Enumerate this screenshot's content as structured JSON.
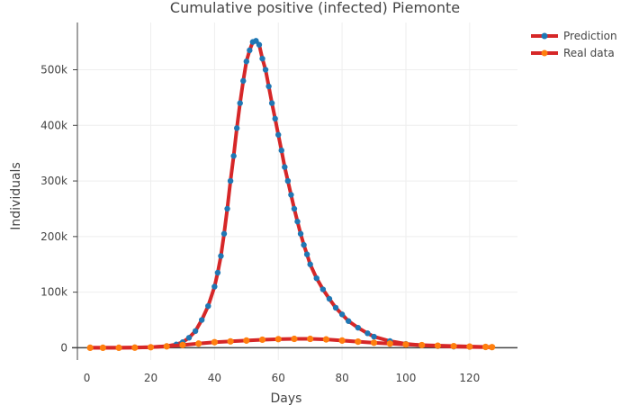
{
  "chart_data": {
    "type": "line",
    "title": "Cumulative positive (infected) Piemonte",
    "xlabel": "Days",
    "ylabel": "Individuals",
    "xlim": [
      -3,
      135
    ],
    "ylim": [
      -22000,
      585000
    ],
    "xticks": [
      0,
      20,
      40,
      60,
      80,
      100,
      120
    ],
    "xtick_labels": [
      "0",
      "20",
      "40",
      "60",
      "80",
      "100",
      "120"
    ],
    "yticks": [
      0,
      100000,
      200000,
      300000,
      400000,
      500000
    ],
    "ytick_labels": [
      "0",
      "100k",
      "200k",
      "300k",
      "400k",
      "500k"
    ],
    "grid": true,
    "legend_position": "top-right",
    "colors": {
      "line": "#d62728",
      "prediction_marker": "#1f77b4",
      "real_marker": "#ff7f0e",
      "axis": "#444444",
      "grid": "#eeeeee"
    },
    "series": [
      {
        "name": "Prediction",
        "x": [
          1,
          5,
          10,
          15,
          20,
          25,
          28,
          30,
          32,
          34,
          36,
          38,
          40,
          41,
          42,
          43,
          44,
          45,
          46,
          47,
          48,
          49,
          50,
          51,
          52,
          53,
          54,
          55,
          56,
          57,
          58,
          59,
          60,
          61,
          62,
          63,
          64,
          65,
          66,
          67,
          68,
          69,
          70,
          72,
          74,
          76,
          78,
          80,
          82,
          85,
          88,
          90,
          95,
          100,
          105,
          110,
          115,
          120,
          125,
          127
        ],
        "y": [
          0,
          0,
          0,
          500,
          1000,
          3000,
          6000,
          10000,
          18000,
          30000,
          50000,
          75000,
          110000,
          135000,
          165000,
          205000,
          250000,
          300000,
          345000,
          395000,
          440000,
          480000,
          515000,
          535000,
          550000,
          552000,
          545000,
          520000,
          500000,
          470000,
          440000,
          412000,
          383000,
          355000,
          325000,
          300000,
          275000,
          250000,
          227000,
          205000,
          185000,
          168000,
          150000,
          125000,
          105000,
          88000,
          72000,
          60000,
          48000,
          36000,
          26000,
          20000,
          12000,
          7000,
          4500,
          3000,
          2000,
          1500,
          1000,
          800
        ]
      },
      {
        "name": "Real data",
        "x": [
          1,
          5,
          10,
          15,
          20,
          25,
          30,
          35,
          40,
          45,
          50,
          55,
          60,
          65,
          70,
          75,
          80,
          85,
          90,
          95,
          100,
          105,
          110,
          115,
          120,
          125,
          127
        ],
        "y": [
          0,
          0,
          0,
          200,
          1000,
          2500,
          5000,
          7500,
          10000,
          11500,
          13000,
          14500,
          15500,
          16000,
          16000,
          15000,
          13000,
          11000,
          9000,
          7500,
          6000,
          4800,
          3800,
          3000,
          2200,
          1500,
          1200
        ]
      }
    ]
  }
}
